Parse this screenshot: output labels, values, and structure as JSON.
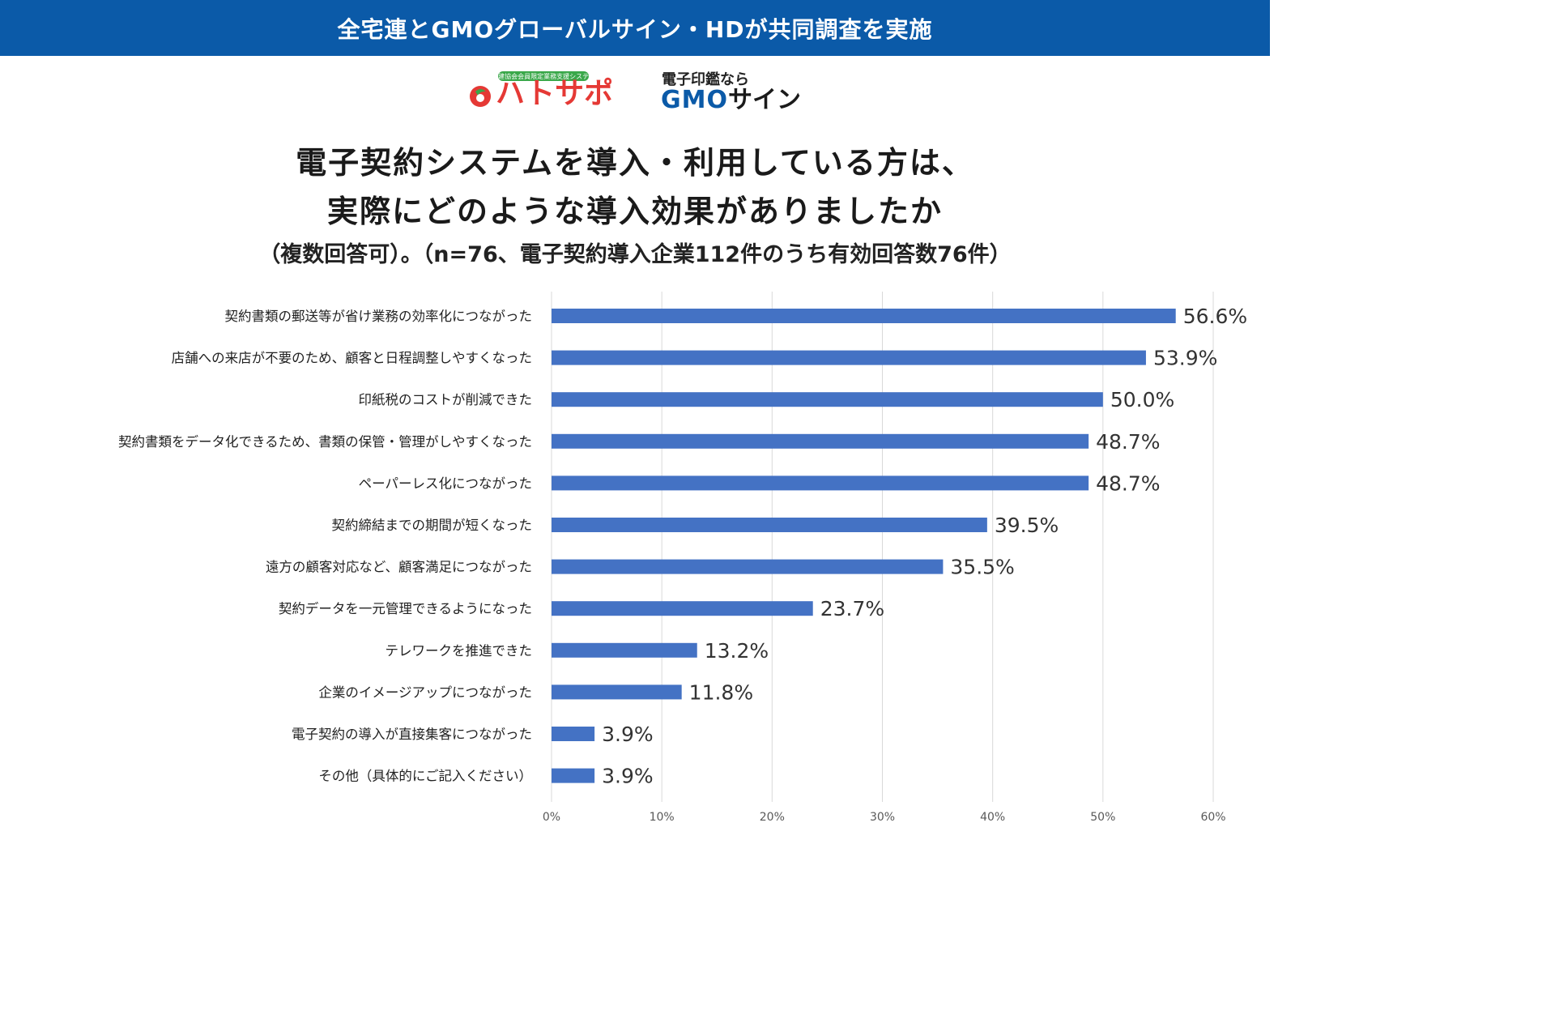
{
  "banner": {
    "text": "全宅連とGMOグローバルサイン・HDが共同調査を実施",
    "color": "#0b5aa8"
  },
  "logos": {
    "hato_tag": "宅建協会会員限定業務支援システム",
    "hato_name": "ハトサポ",
    "hato_color": "#e53935",
    "hato_green": "#3aa84a",
    "gmo_tagline": "電子印鑑なら",
    "gmo_brand": "GMO",
    "gmo_sign": "サイン"
  },
  "heading": {
    "line1": "電子契約システムを導入・利用している方は、",
    "line2": "実際にどのような導入効果がありましたか",
    "subtitle": "（複数回答可）。（n=76、電子契約導入企業112件のうち有効回答数76件）"
  },
  "chart_data": {
    "type": "bar",
    "orientation": "horizontal",
    "categories": [
      "契約書類の郵送等が省け業務の効率化につながった",
      "店舗への来店が不要のため、顧客と日程調整しやすくなった",
      "印紙税のコストが削減できた",
      "契約書類をデータ化できるため、書類の保管・管理がしやすくなった",
      "ペーパーレス化につながった",
      "契約締結までの期間が短くなった",
      "遠方の顧客対応など、顧客満足につながった",
      "契約データを一元管理できるようになった",
      "テレワークを推進できた",
      "企業のイメージアップにつながった",
      "電子契約の導入が直接集客につながった",
      "その他（具体的にご記入ください）"
    ],
    "values": [
      56.6,
      53.9,
      50.0,
      48.7,
      48.7,
      39.5,
      35.5,
      23.7,
      13.2,
      11.8,
      3.9,
      3.9
    ],
    "value_labels": [
      "56.6%",
      "53.9%",
      "50.0%",
      "48.7%",
      "48.7%",
      "39.5%",
      "35.5%",
      "23.7%",
      "13.2%",
      "11.8%",
      "3.9%",
      "3.9%"
    ],
    "x_ticks": [
      0,
      10,
      20,
      30,
      40,
      50,
      60
    ],
    "x_tick_labels": [
      "0%",
      "10%",
      "20%",
      "30%",
      "40%",
      "50%",
      "60%"
    ],
    "xlim": [
      0,
      60
    ],
    "grid": true,
    "bar_color": "#4472c4"
  }
}
